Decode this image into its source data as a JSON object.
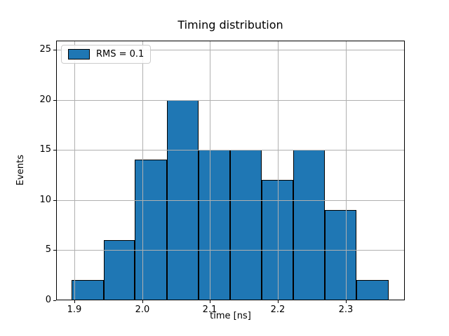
{
  "chart_data": {
    "type": "histogram",
    "title": "Timing distribution",
    "xlabel": "time [ns]",
    "ylabel": "Events",
    "legend": {
      "position": "upper left",
      "entries": [
        {
          "label": "RMS = 0.1",
          "swatch": "blue-filled-rect"
        }
      ]
    },
    "bin_edges": [
      1.896,
      1.943,
      1.989,
      2.036,
      2.083,
      2.129,
      2.176,
      2.223,
      2.269,
      2.316,
      2.363
    ],
    "counts": [
      2,
      6,
      14,
      20,
      15,
      15,
      12,
      15,
      9,
      2
    ],
    "xticks": [
      1.9,
      2.0,
      2.1,
      2.2,
      2.3
    ],
    "xtick_labels": [
      "1.9",
      "2.0",
      "2.1",
      "2.2",
      "2.3"
    ],
    "yticks": [
      0,
      5,
      10,
      15,
      20,
      25
    ],
    "ytick_labels": [
      "0",
      "5",
      "10",
      "15",
      "20",
      "25"
    ],
    "xlim": [
      1.873,
      2.387
    ],
    "ylim": [
      0,
      25.9
    ],
    "grid": true,
    "grid_above_bars": true,
    "colors": {
      "bar_fill": "#1f77b4",
      "bar_edge": "#000000",
      "grid": "#b0b0b0",
      "frame": "#000000",
      "legend_border": "#cccccc"
    }
  }
}
